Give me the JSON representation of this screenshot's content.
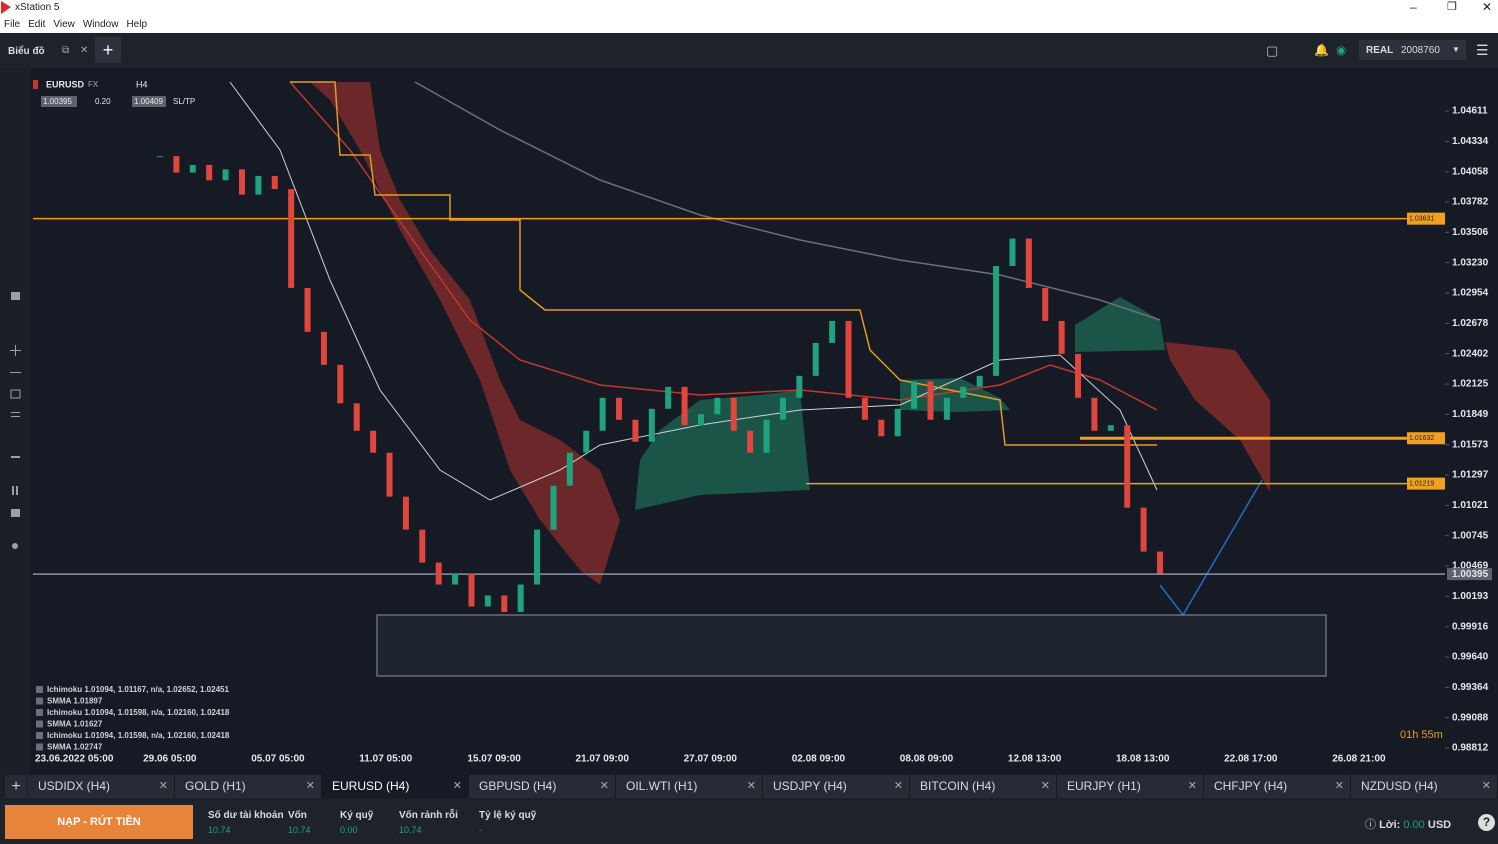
{
  "window": {
    "title": "xStation 5",
    "menu": [
      "File",
      "Edit",
      "View",
      "Window",
      "Help"
    ]
  },
  "toolbar": {
    "view": "Biểu đồ",
    "account_type": "REAL",
    "account_id": "2008760"
  },
  "symbol": {
    "name": "EURUSD",
    "market": "FX",
    "interval": "H4",
    "bid": "1.00395",
    "spread": "0.20",
    "ask": "1.00409",
    "sltp": "SL/TP"
  },
  "chart_data": {
    "type": "candlestick",
    "yticks": [
      1.04611,
      1.04334,
      1.04058,
      1.03782,
      1.03506,
      {
        "value": 1.0323,
        "label": "1.03230"
      },
      1.02954,
      1.02678,
      1.02402,
      1.02125,
      1.01849,
      1.01573,
      1.01297,
      1.01021,
      1.00745,
      1.00469,
      1.00193,
      0.99916,
      {
        "value": 0.9964,
        "label": "0.99640"
      },
      0.99364,
      0.99088,
      0.98812
    ],
    "x_labels": [
      "23.06.2022 05:00",
      "29.06 05:00",
      "05.07 05:00",
      "11.07 05:00",
      "15.07 09:00",
      "21.07 09:00",
      "27.07 09:00",
      "02.08 09:00",
      "08.08 09:00",
      "12.08 13:00",
      "18.08 13:00",
      "22.08 17:00",
      "26.08 21:00"
    ],
    "closes": [
      1.042,
      1.0405,
      1.0412,
      1.0398,
      1.0408,
      1.0385,
      1.0402,
      1.039,
      1.03,
      1.026,
      1.023,
      1.0195,
      1.017,
      1.015,
      1.011,
      1.008,
      1.005,
      1.003,
      1.004,
      1.001,
      1.002,
      1.0005,
      1.003,
      1.008,
      1.012,
      1.015,
      1.017,
      1.02,
      1.018,
      1.016,
      1.019,
      1.021,
      1.0175,
      1.0185,
      1.02,
      1.017,
      1.015,
      1.018,
      1.02,
      1.022,
      1.025,
      1.027,
      1.02,
      1.018,
      1.0165,
      1.019,
      1.0215,
      1.018,
      1.02,
      1.021,
      1.022,
      1.032,
      1.0345,
      1.03,
      1.027,
      1.024,
      1.02,
      1.017,
      1.0175,
      1.01,
      1.006,
      1.004
    ],
    "levels": [
      {
        "value": 1.03631,
        "color": "#f0a020"
      },
      {
        "value": 1.01632,
        "color": "#f0a020"
      },
      {
        "value": 1.01219,
        "color": "#f0a020"
      },
      {
        "value": 1.00395,
        "color": "#8a93a3"
      }
    ],
    "up_color": "#1fa37c",
    "down_color": "#e0463e",
    "indicators": [
      "Ichimoku 1.01094, 1.01167, n/a, 1.02652, 1.02451",
      "SMMA 1.01897",
      "Ichimoku 1.01094, 1.01598, n/a, 1.02160, 1.02418",
      "SMMA 1.01627",
      "Ichimoku 1.01094, 1.01598, n/a, 1.02160, 1.02418",
      "SMMA 1.02747"
    ],
    "timer": "01h 55m"
  },
  "tabs": [
    "USDIDX (H4)",
    "GOLD (H1)",
    "EURUSD (H4)",
    "GBPUSD (H4)",
    "OIL.WTI (H1)",
    "USDJPY (H4)",
    "BITCOIN (H4)",
    "EURJPY (H1)",
    "CHFJPY (H4)",
    "NZDUSD (H4)"
  ],
  "footer": {
    "deposit": "NẠP - RÚT TIỀN",
    "stats": [
      {
        "label": "Số dư tài khoản",
        "value": "10.74"
      },
      {
        "label": "Vốn",
        "value": "10.74"
      },
      {
        "label": "Ký quỹ",
        "value": "0.00"
      },
      {
        "label": "Vốn rảnh rỗi",
        "value": "10.74"
      },
      {
        "label": "Tỷ lệ ký quỹ",
        "value": "-"
      }
    ],
    "profit_label": "Lời:",
    "profit": "0.00",
    "currency": "USD"
  }
}
